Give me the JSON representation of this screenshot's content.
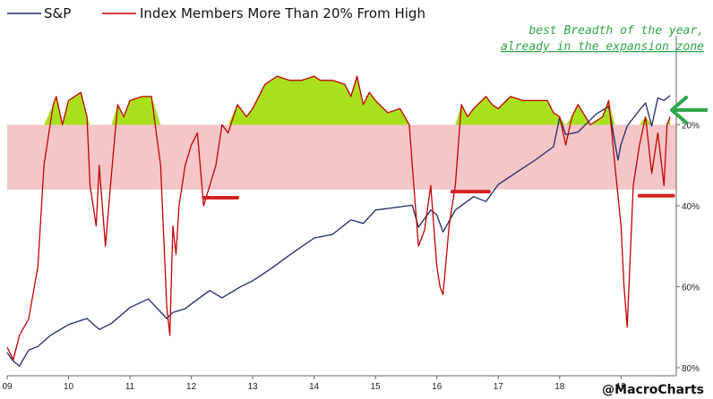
{
  "credit": "@MacroCharts",
  "annotation": {
    "line1": "best Breadth of the year,",
    "line2": "already in the expansion zone"
  },
  "colors": {
    "sp": "#1f2a6b",
    "breadth": "#c40000",
    "expansion_fill": "#a9e01e",
    "zone_band": "#f4c6c8",
    "support_marker": "#d42020",
    "annotation": "#2fa64a",
    "axis": "#666666"
  },
  "chart_data": {
    "type": "line",
    "x_tick_labels": [
      "09",
      "10",
      "11",
      "12",
      "13",
      "14",
      "15",
      "16",
      "17",
      "18",
      "19"
    ],
    "x_ticks": [
      2009.0,
      2010.0,
      2011.0,
      2012.0,
      2013.0,
      2014.0,
      2015.0,
      2016.0,
      2017.0,
      2018.0,
      2019.0
    ],
    "xlim": [
      2009.0,
      2019.9
    ],
    "right_axis": {
      "tick_labels": [
        "20%",
        "40%",
        "60%",
        "80%"
      ],
      "ticks": [
        20,
        40,
        60,
        80
      ],
      "inverted": true,
      "range": [
        -2,
        82
      ]
    },
    "zone_band": [
      20,
      36
    ],
    "expansion_threshold": 20,
    "legend": [
      {
        "name": "S&P",
        "color": "#1f2a6b"
      },
      {
        "name": "Index Members More Than 20% From High",
        "color": "#c40000"
      }
    ],
    "series": [
      {
        "name": "Index Members More Than 20% From High",
        "x": [
          2009.0,
          2009.1,
          2009.2,
          2009.35,
          2009.5,
          2009.6,
          2009.75,
          2009.8,
          2009.9,
          2010.0,
          2010.2,
          2010.3,
          2010.35,
          2010.45,
          2010.5,
          2010.6,
          2010.7,
          2010.8,
          2010.9,
          2011.0,
          2011.2,
          2011.35,
          2011.5,
          2011.6,
          2011.65,
          2011.7,
          2011.75,
          2011.8,
          2011.9,
          2012.0,
          2012.1,
          2012.2,
          2012.3,
          2012.4,
          2012.5,
          2012.6,
          2012.75,
          2012.9,
          2013.0,
          2013.2,
          2013.4,
          2013.6,
          2013.8,
          2014.0,
          2014.1,
          2014.3,
          2014.5,
          2014.6,
          2014.7,
          2014.8,
          2014.9,
          2015.0,
          2015.2,
          2015.4,
          2015.55,
          2015.65,
          2015.7,
          2015.8,
          2015.9,
          2016.0,
          2016.05,
          2016.1,
          2016.2,
          2016.3,
          2016.4,
          2016.5,
          2016.6,
          2016.8,
          2016.9,
          2017.0,
          2017.2,
          2017.4,
          2017.6,
          2017.8,
          2017.9,
          2018.0,
          2018.1,
          2018.2,
          2018.3,
          2018.5,
          2018.7,
          2018.8,
          2018.9,
          2019.0,
          2019.05,
          2019.1,
          2019.2,
          2019.3,
          2019.4,
          2019.5,
          2019.6,
          2019.7,
          2019.75,
          2019.8
        ],
        "values": [
          75,
          78,
          72,
          68,
          55,
          30,
          15,
          13,
          20,
          14,
          12,
          18,
          35,
          45,
          30,
          50,
          32,
          15,
          18,
          14,
          13,
          13,
          30,
          65,
          72,
          45,
          52,
          40,
          30,
          25,
          22,
          40,
          35,
          30,
          20,
          22,
          15,
          18,
          16,
          10,
          8,
          9,
          9,
          8,
          9,
          9,
          10,
          13,
          8,
          15,
          12,
          14,
          17,
          16,
          20,
          40,
          50,
          46,
          35,
          55,
          60,
          62,
          45,
          35,
          15,
          18,
          16,
          13,
          15,
          16,
          13,
          14,
          14,
          14,
          17,
          18,
          25,
          18,
          15,
          20,
          18,
          14,
          30,
          45,
          60,
          70,
          35,
          25,
          18,
          32,
          22,
          35,
          20,
          18
        ]
      },
      {
        "name": "S&P",
        "x": [
          2009.0,
          2009.1,
          2009.2,
          2009.35,
          2009.5,
          2009.7,
          2009.9,
          2010.0,
          2010.3,
          2010.5,
          2010.7,
          2011.0,
          2011.3,
          2011.6,
          2011.7,
          2011.9,
          2012.0,
          2012.3,
          2012.5,
          2012.8,
          2013.0,
          2013.3,
          2013.6,
          2014.0,
          2014.3,
          2014.6,
          2014.8,
          2015.0,
          2015.3,
          2015.6,
          2015.7,
          2015.9,
          2016.0,
          2016.1,
          2016.3,
          2016.6,
          2016.8,
          2017.0,
          2017.3,
          2017.6,
          2017.9,
          2018.0,
          2018.1,
          2018.3,
          2018.6,
          2018.8,
          2018.95,
          2019.0,
          2019.1,
          2019.3,
          2019.4,
          2019.5,
          2019.6,
          2019.7,
          2019.8
        ],
        "values": [
          890,
          820,
          780,
          910,
          940,
          1030,
          1090,
          1120,
          1170,
          1080,
          1130,
          1260,
          1330,
          1170,
          1220,
          1250,
          1290,
          1400,
          1340,
          1430,
          1480,
          1580,
          1690,
          1830,
          1860,
          1980,
          1950,
          2060,
          2080,
          2100,
          1920,
          2060,
          2020,
          1880,
          2060,
          2170,
          2130,
          2270,
          2370,
          2470,
          2580,
          2820,
          2680,
          2700,
          2850,
          2910,
          2470,
          2600,
          2750,
          2880,
          2940,
          2750,
          2980,
          2960,
          3000
        ]
      }
    ]
  }
}
